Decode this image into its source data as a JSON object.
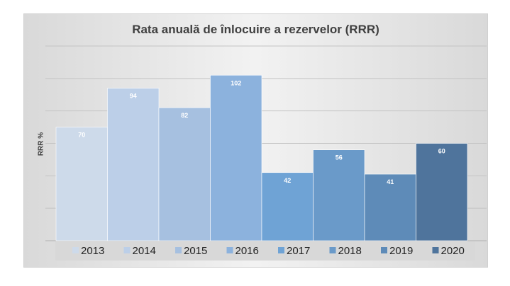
{
  "chart_data": {
    "type": "bar",
    "title": "Rata anuală de înlocuire a rezervelor (RRR)",
    "ylabel": "RRR      %",
    "ylim": [
      0,
      120
    ],
    "grid": true,
    "legend_position": "bottom",
    "series": [
      {
        "name": "2013",
        "value": 70,
        "color": "#cddaea"
      },
      {
        "name": "2014",
        "value": 94,
        "color": "#bccfe8"
      },
      {
        "name": "2015",
        "value": 82,
        "color": "#a6c0e0"
      },
      {
        "name": "2016",
        "value": 102,
        "color": "#8cb2dd"
      },
      {
        "name": "2017",
        "value": 42,
        "color": "#6fa3d5"
      },
      {
        "name": "2018",
        "value": 56,
        "color": "#6a9ac9"
      },
      {
        "name": "2019",
        "value": 41,
        "color": "#5e8bb8"
      },
      {
        "name": "2020",
        "value": 60,
        "color": "#4f749c"
      }
    ]
  }
}
